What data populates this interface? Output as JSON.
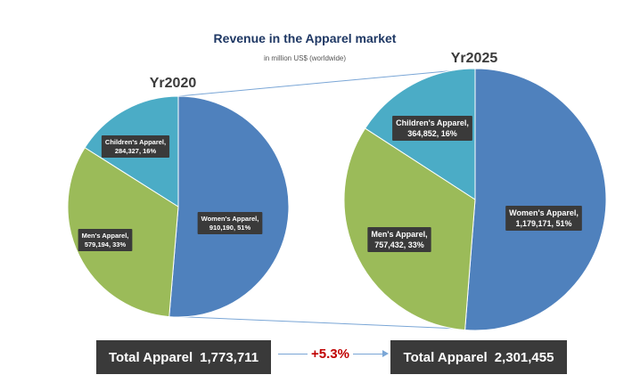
{
  "chart_data": {
    "type": "pie",
    "title": "Revenue in the Apparel market",
    "subtitle": "in million US$ (worldwide)",
    "colors": {
      "womens": "#4f81bd",
      "mens": "#9bbb59",
      "childrens": "#4bacc6",
      "label_bg": "#3a3a3a",
      "growth": "#c00000",
      "connector": "#7aa6d6"
    },
    "pies": [
      {
        "year_label": "Yr2020",
        "slices": [
          {
            "name": "Women's Apparel",
            "value": 910190,
            "percent": 51,
            "label_line1": "Women's Apparel,",
            "label_line2": "910,190, 51%",
            "color_key": "womens"
          },
          {
            "name": "Men's Apparel",
            "value": 579194,
            "percent": 33,
            "label_line1": "Men's Apparel,",
            "label_line2": "579,194, 33%",
            "color_key": "mens"
          },
          {
            "name": "Children's Apparel",
            "value": 284327,
            "percent": 16,
            "label_line1": "Children's Apparel,",
            "label_line2": "284,327, 16%",
            "color_key": "childrens"
          }
        ],
        "total_label": "Total Apparel",
        "total_value": "1,773,711"
      },
      {
        "year_label": "Yr2025",
        "slices": [
          {
            "name": "Women's Apparel",
            "value": 1179171,
            "percent": 51,
            "label_line1": "Women's Apparel,",
            "label_line2": "1,179,171, 51%",
            "color_key": "womens"
          },
          {
            "name": "Men's Apparel",
            "value": 757432,
            "percent": 33,
            "label_line1": "Men's Apparel,",
            "label_line2": "757,432, 33%",
            "color_key": "mens"
          },
          {
            "name": "Children's Apparel",
            "value": 364852,
            "percent": 16,
            "label_line1": "Children's Apparel,",
            "label_line2": "364,852, 16%",
            "color_key": "childrens"
          }
        ],
        "total_label": "Total Apparel",
        "total_value": "2,301,455"
      }
    ],
    "growth_label": "+5.3%"
  }
}
